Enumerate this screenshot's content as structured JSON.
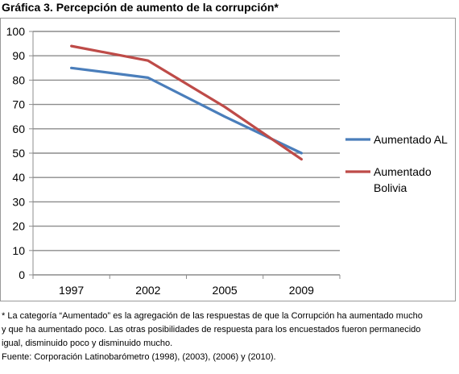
{
  "title": "Gráfica 3. Percepción de aumento de la corrupción*",
  "chart_data": {
    "type": "line",
    "categories": [
      "1997",
      "2002",
      "2005",
      "2009"
    ],
    "ylim": [
      0,
      100
    ],
    "yticks": [
      0,
      10,
      20,
      30,
      40,
      50,
      60,
      70,
      80,
      90,
      100
    ],
    "grid": true,
    "legend_position": "right",
    "series": [
      {
        "name": "Aumentado AL",
        "name_lines": [
          "Aumentado AL"
        ],
        "color": "#4a7ebb",
        "values": [
          85,
          81,
          65,
          50
        ]
      },
      {
        "name": "Aumentado Bolivia",
        "name_lines": [
          "Aumentado",
          "Bolivia"
        ],
        "color": "#be4b48",
        "values": [
          94,
          88,
          69,
          47.5
        ]
      }
    ]
  },
  "notes": [
    "* La categoría “Aumentado” es la agregación de las respuestas de que la Corrupción ha aumentado mucho",
    "y que ha aumentado poco. Las otras posibilidades de respuesta para los encuestados fueron permanecido",
    "igual, disminuido poco y disminuido mucho.",
    "Fuente: Corporación Latinobarómetro (1998), (2003), (2006) y (2010)."
  ]
}
